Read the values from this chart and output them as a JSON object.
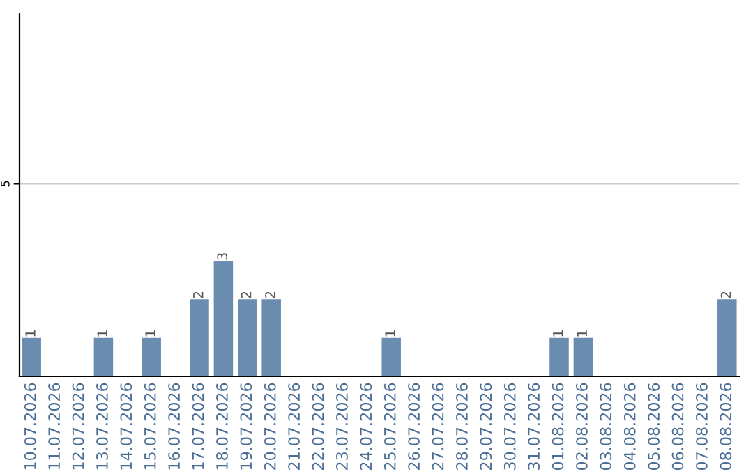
{
  "chart_data": {
    "type": "bar",
    "categories": [
      "10.07.2026",
      "11.07.2026",
      "12.07.2026",
      "13.07.2026",
      "14.07.2026",
      "15.07.2026",
      "16.07.2026",
      "17.07.2026",
      "18.07.2026",
      "19.07.2026",
      "20.07.2026",
      "21.07.2026",
      "22.07.2026",
      "23.07.2026",
      "24.07.2026",
      "25.07.2026",
      "26.07.2026",
      "27.07.2026",
      "28.07.2026",
      "29.07.2026",
      "30.07.2026",
      "31.07.2026",
      "01.08.2026",
      "02.08.2026",
      "03.08.2026",
      "04.08.2026",
      "05.08.2026",
      "06.08.2026",
      "07.08.2026",
      "08.08.2026"
    ],
    "values": [
      1,
      0,
      0,
      1,
      0,
      1,
      0,
      2,
      3,
      2,
      2,
      0,
      0,
      0,
      0,
      1,
      0,
      0,
      0,
      0,
      0,
      0,
      1,
      1,
      0,
      0,
      0,
      0,
      0,
      2
    ],
    "value_labels": [
      "1",
      null,
      null,
      "1",
      null,
      "1",
      null,
      "2",
      "3",
      "2",
      "2",
      null,
      null,
      null,
      null,
      "1",
      null,
      null,
      null,
      null,
      null,
      null,
      "1",
      "1",
      null,
      null,
      null,
      null,
      null,
      "2"
    ],
    "color": "#6a8caf",
    "ylim": [
      0,
      9.4
    ],
    "yticks": [
      5
    ],
    "grid": "y"
  }
}
